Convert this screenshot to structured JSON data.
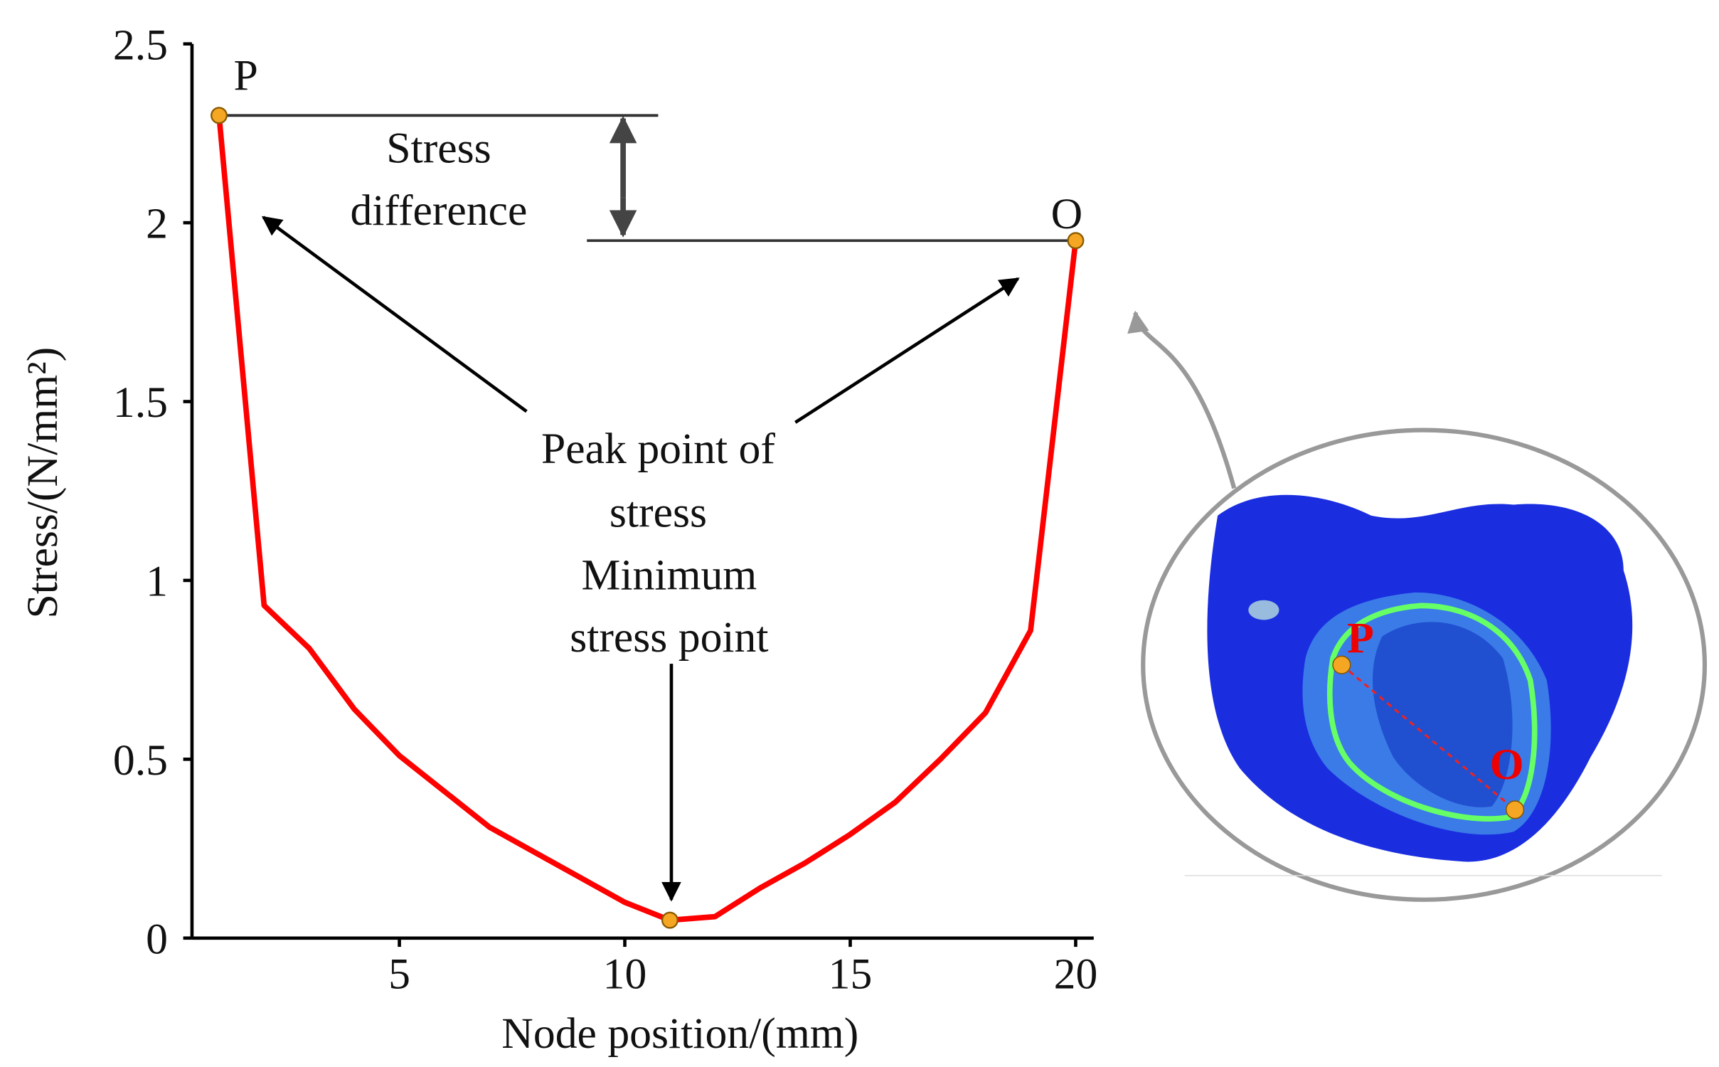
{
  "chart_data": {
    "type": "line",
    "x_label": "Node position/(mm)",
    "y_label": "Stress/(N/mm²)",
    "x": [
      1,
      2,
      3,
      4,
      5,
      6,
      7,
      8,
      9,
      10,
      11,
      12,
      13,
      14,
      15,
      16,
      17,
      18,
      19,
      20
    ],
    "series": [
      {
        "name": "Stress",
        "color": "#ff0000",
        "values": [
          2.3,
          0.93,
          0.81,
          0.64,
          0.51,
          0.41,
          0.31,
          0.24,
          0.17,
          0.1,
          0.05,
          0.06,
          0.14,
          0.21,
          0.29,
          0.38,
          0.5,
          0.63,
          0.86,
          1.95
        ]
      }
    ],
    "xlim": [
      0.4,
      20.4
    ],
    "xticks": [
      5,
      10,
      15,
      20
    ],
    "ylim": [
      0,
      2.5
    ],
    "yticks": [
      0,
      0.5,
      1,
      1.5,
      2,
      2.5
    ],
    "annotations": {
      "peak_left": "P",
      "peak_right": "O",
      "difference": [
        "Stress",
        "difference"
      ],
      "peak": [
        "Peak point of",
        "stress"
      ],
      "minimum": [
        "Minimum",
        "stress point"
      ]
    },
    "inset": {
      "labels": [
        "P",
        "O"
      ]
    }
  }
}
